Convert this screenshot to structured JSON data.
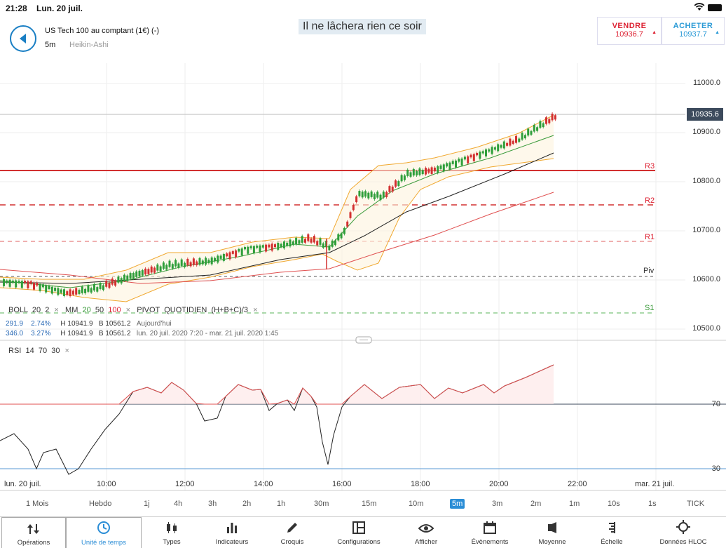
{
  "status": {
    "time": "21:28",
    "date": "Lun. 20 juil."
  },
  "instrument": {
    "name": "US Tech 100 au comptant (1€) (-)",
    "timeframe": "5m",
    "chart_type": "Heikin-Ashi"
  },
  "caption": "Il ne lâchera rien ce soir",
  "sell": {
    "label": "VENDRE",
    "price": "10936.7"
  },
  "buy": {
    "label": "ACHETER",
    "price": "10937.7"
  },
  "current_price": "10935.6",
  "price_axis": [
    "11000.0",
    "10900.0",
    "10800.0",
    "10700.0",
    "10600.0",
    "10500.0"
  ],
  "pivots": {
    "r3": "R3",
    "r2": "R2",
    "r1": "R1",
    "piv": "Piv",
    "s1": "S1"
  },
  "legend": {
    "boll": "BOLL",
    "boll_p1": "20",
    "boll_p2": "2",
    "mm": "MM",
    "mm_p1": "20",
    "mm_p2": "50",
    "mm_p3": "100",
    "pivot": "PIVOT",
    "pivot_type": "QUOTIDIEN",
    "pivot_formula": "(H+B+C)/3",
    "row1": {
      "v1": "291.9",
      "v2": "2.74%",
      "h": "H 10941.9",
      "b": "B 10561.2",
      "range": "Aujourd'hui"
    },
    "row2": {
      "v1": "346.0",
      "v2": "3.27%",
      "h": "H 10941.9",
      "b": "B 10561.2",
      "range": "lun. 20 juil. 2020 7:20 - mar. 21 juil. 2020 1:45"
    },
    "close": "×"
  },
  "rsi": {
    "label": "RSI",
    "p1": "14",
    "p2": "70",
    "p3": "30",
    "upper": "70",
    "lower": "30"
  },
  "time_axis": [
    "lun. 20 juil.",
    "10:00",
    "12:00",
    "14:00",
    "16:00",
    "18:00",
    "20:00",
    "22:00",
    "mar. 21 juil."
  ],
  "timeframes": [
    "1 Mois",
    "Hebdo",
    "1j",
    "4h",
    "3h",
    "2h",
    "1h",
    "30m",
    "15m",
    "10m",
    "5m",
    "3m",
    "2m",
    "1m",
    "10s",
    "1s",
    "TICK"
  ],
  "active_timeframe": "5m",
  "toolbar": [
    "Opérations",
    "Unité de temps",
    "Types",
    "Indicateurs",
    "Croquis",
    "Configurations",
    "Afficher",
    "Évènements",
    "Moyenne",
    "Échelle",
    "Données HLOC"
  ],
  "colors": {
    "accent": "#2a8dd6",
    "up": "#2e9e3a",
    "down": "#d23030",
    "pivot_resistance": "#d23030",
    "pivot_support": "#3a9a3a",
    "boll": "#f0a830",
    "mm20": "#3a9a3a",
    "mm50": "#222222",
    "mm100": "#e05050"
  }
}
